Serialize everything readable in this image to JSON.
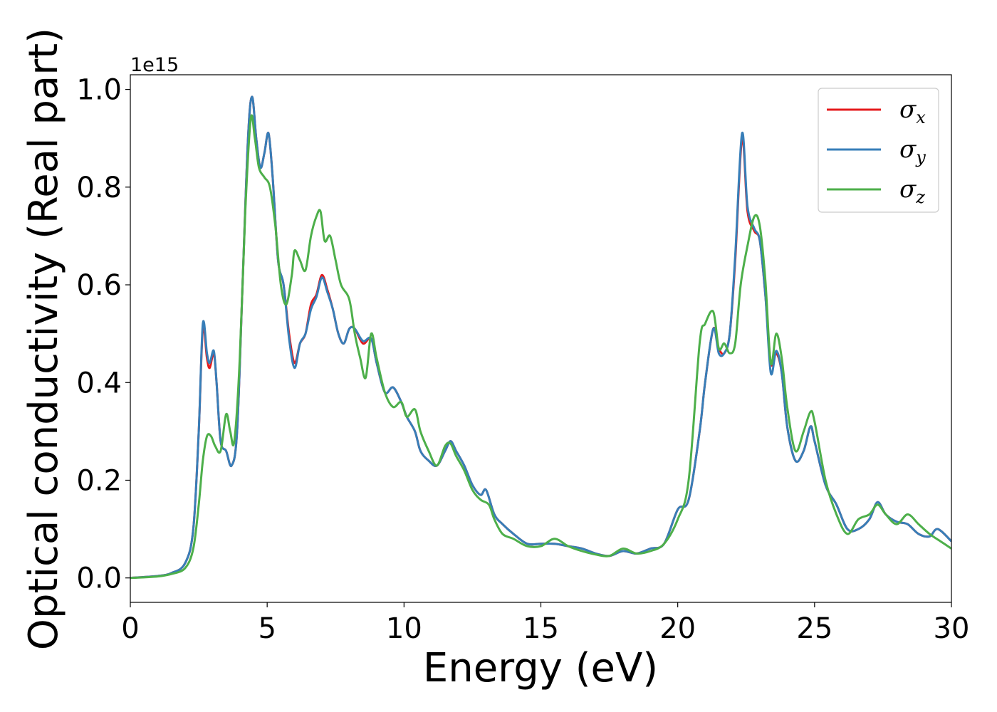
{
  "chart_data": {
    "type": "line",
    "xlabel": "Energy (eV)",
    "ylabel": "Optical conductivity (Real part)",
    "y_offset_label": "1e15",
    "xlim": [
      0,
      30
    ],
    "ylim": [
      -0.05,
      1.03
    ],
    "xticks": [
      0,
      5,
      10,
      15,
      20,
      25,
      30
    ],
    "xtick_labels": [
      "0",
      "5",
      "10",
      "15",
      "20",
      "25",
      "30"
    ],
    "yticks": [
      0.0,
      0.2,
      0.4,
      0.6,
      0.8,
      1.0
    ],
    "ytick_labels": [
      "0.0",
      "0.2",
      "0.4",
      "0.6",
      "0.8",
      "1.0"
    ],
    "grid": false,
    "legend_position": "top-right",
    "series": [
      {
        "name": "σx",
        "symbol": "σ",
        "subscript": "x",
        "color": "#e41a1c",
        "points": [
          [
            0,
            0
          ],
          [
            1,
            0.004
          ],
          [
            1.5,
            0.01
          ],
          [
            2,
            0.03
          ],
          [
            2.3,
            0.1
          ],
          [
            2.5,
            0.3
          ],
          [
            2.65,
            0.51
          ],
          [
            2.8,
            0.45
          ],
          [
            2.9,
            0.43
          ],
          [
            3.05,
            0.46
          ],
          [
            3.15,
            0.4
          ],
          [
            3.3,
            0.28
          ],
          [
            3.5,
            0.26
          ],
          [
            3.7,
            0.23
          ],
          [
            3.9,
            0.3
          ],
          [
            4.1,
            0.6
          ],
          [
            4.3,
            0.9
          ],
          [
            4.45,
            0.985
          ],
          [
            4.6,
            0.9
          ],
          [
            4.75,
            0.84
          ],
          [
            4.9,
            0.87
          ],
          [
            5.05,
            0.91
          ],
          [
            5.2,
            0.82
          ],
          [
            5.4,
            0.65
          ],
          [
            5.6,
            0.6
          ],
          [
            5.8,
            0.5
          ],
          [
            6.0,
            0.44
          ],
          [
            6.2,
            0.48
          ],
          [
            6.4,
            0.5
          ],
          [
            6.6,
            0.56
          ],
          [
            6.8,
            0.58
          ],
          [
            7.0,
            0.62
          ],
          [
            7.2,
            0.59
          ],
          [
            7.4,
            0.55
          ],
          [
            7.6,
            0.5
          ],
          [
            7.8,
            0.48
          ],
          [
            8.0,
            0.51
          ],
          [
            8.2,
            0.51
          ],
          [
            8.5,
            0.48
          ],
          [
            8.8,
            0.49
          ],
          [
            9.0,
            0.44
          ],
          [
            9.3,
            0.38
          ],
          [
            9.6,
            0.39
          ],
          [
            9.9,
            0.36
          ],
          [
            10.1,
            0.33
          ],
          [
            10.4,
            0.3
          ],
          [
            10.6,
            0.26
          ],
          [
            10.9,
            0.24
          ],
          [
            11.2,
            0.23
          ],
          [
            11.5,
            0.26
          ],
          [
            11.7,
            0.28
          ],
          [
            11.9,
            0.26
          ],
          [
            12.2,
            0.23
          ],
          [
            12.5,
            0.19
          ],
          [
            12.8,
            0.17
          ],
          [
            13.0,
            0.18
          ],
          [
            13.3,
            0.13
          ],
          [
            13.6,
            0.11
          ],
          [
            14.0,
            0.09
          ],
          [
            14.5,
            0.07
          ],
          [
            15.0,
            0.07
          ],
          [
            15.5,
            0.07
          ],
          [
            16.0,
            0.065
          ],
          [
            16.5,
            0.06
          ],
          [
            17.0,
            0.05
          ],
          [
            17.5,
            0.045
          ],
          [
            18.0,
            0.055
          ],
          [
            18.5,
            0.05
          ],
          [
            19.0,
            0.06
          ],
          [
            19.5,
            0.07
          ],
          [
            20.0,
            0.14
          ],
          [
            20.4,
            0.16
          ],
          [
            20.8,
            0.3
          ],
          [
            21.0,
            0.4
          ],
          [
            21.3,
            0.51
          ],
          [
            21.5,
            0.47
          ],
          [
            21.7,
            0.46
          ],
          [
            21.9,
            0.5
          ],
          [
            22.1,
            0.65
          ],
          [
            22.35,
            0.9
          ],
          [
            22.55,
            0.75
          ],
          [
            22.8,
            0.71
          ],
          [
            23.0,
            0.69
          ],
          [
            23.2,
            0.58
          ],
          [
            23.4,
            0.44
          ],
          [
            23.6,
            0.46
          ],
          [
            23.8,
            0.42
          ],
          [
            24.0,
            0.31
          ],
          [
            24.3,
            0.24
          ],
          [
            24.6,
            0.26
          ],
          [
            24.85,
            0.31
          ],
          [
            25.0,
            0.28
          ],
          [
            25.4,
            0.19
          ],
          [
            25.8,
            0.15
          ],
          [
            26.2,
            0.1
          ],
          [
            26.6,
            0.1
          ],
          [
            27.0,
            0.12
          ],
          [
            27.3,
            0.155
          ],
          [
            27.6,
            0.13
          ],
          [
            28.0,
            0.115
          ],
          [
            28.4,
            0.11
          ],
          [
            28.8,
            0.09
          ],
          [
            29.2,
            0.085
          ],
          [
            29.5,
            0.1
          ],
          [
            30,
            0.075
          ]
        ]
      },
      {
        "name": "σy",
        "symbol": "σ",
        "subscript": "y",
        "color": "#377eb8",
        "points": [
          [
            0,
            0
          ],
          [
            1,
            0.004
          ],
          [
            1.5,
            0.01
          ],
          [
            2,
            0.03
          ],
          [
            2.3,
            0.1
          ],
          [
            2.5,
            0.3
          ],
          [
            2.65,
            0.52
          ],
          [
            2.8,
            0.46
          ],
          [
            2.9,
            0.44
          ],
          [
            3.05,
            0.465
          ],
          [
            3.15,
            0.4
          ],
          [
            3.3,
            0.28
          ],
          [
            3.5,
            0.26
          ],
          [
            3.7,
            0.23
          ],
          [
            3.9,
            0.3
          ],
          [
            4.1,
            0.6
          ],
          [
            4.3,
            0.9
          ],
          [
            4.45,
            0.985
          ],
          [
            4.6,
            0.9
          ],
          [
            4.75,
            0.84
          ],
          [
            4.9,
            0.87
          ],
          [
            5.05,
            0.91
          ],
          [
            5.2,
            0.82
          ],
          [
            5.4,
            0.65
          ],
          [
            5.6,
            0.6
          ],
          [
            5.8,
            0.49
          ],
          [
            6.0,
            0.43
          ],
          [
            6.2,
            0.48
          ],
          [
            6.4,
            0.5
          ],
          [
            6.6,
            0.55
          ],
          [
            6.8,
            0.575
          ],
          [
            7.0,
            0.615
          ],
          [
            7.2,
            0.585
          ],
          [
            7.4,
            0.55
          ],
          [
            7.6,
            0.5
          ],
          [
            7.8,
            0.48
          ],
          [
            8.0,
            0.51
          ],
          [
            8.2,
            0.51
          ],
          [
            8.5,
            0.485
          ],
          [
            8.8,
            0.49
          ],
          [
            9.0,
            0.44
          ],
          [
            9.3,
            0.38
          ],
          [
            9.6,
            0.39
          ],
          [
            9.9,
            0.36
          ],
          [
            10.1,
            0.33
          ],
          [
            10.4,
            0.3
          ],
          [
            10.6,
            0.26
          ],
          [
            10.9,
            0.24
          ],
          [
            11.2,
            0.23
          ],
          [
            11.5,
            0.26
          ],
          [
            11.7,
            0.28
          ],
          [
            11.9,
            0.26
          ],
          [
            12.2,
            0.23
          ],
          [
            12.5,
            0.19
          ],
          [
            12.8,
            0.17
          ],
          [
            13.0,
            0.18
          ],
          [
            13.3,
            0.13
          ],
          [
            13.6,
            0.11
          ],
          [
            14.0,
            0.09
          ],
          [
            14.5,
            0.07
          ],
          [
            15.0,
            0.07
          ],
          [
            15.5,
            0.07
          ],
          [
            16.0,
            0.065
          ],
          [
            16.5,
            0.06
          ],
          [
            17.0,
            0.05
          ],
          [
            17.5,
            0.045
          ],
          [
            18.0,
            0.055
          ],
          [
            18.5,
            0.05
          ],
          [
            19.0,
            0.06
          ],
          [
            19.5,
            0.07
          ],
          [
            20.0,
            0.14
          ],
          [
            20.4,
            0.16
          ],
          [
            20.8,
            0.3
          ],
          [
            21.0,
            0.4
          ],
          [
            21.3,
            0.51
          ],
          [
            21.5,
            0.46
          ],
          [
            21.7,
            0.46
          ],
          [
            21.9,
            0.5
          ],
          [
            22.1,
            0.66
          ],
          [
            22.35,
            0.91
          ],
          [
            22.55,
            0.76
          ],
          [
            22.8,
            0.715
          ],
          [
            23.0,
            0.69
          ],
          [
            23.2,
            0.58
          ],
          [
            23.4,
            0.42
          ],
          [
            23.6,
            0.465
          ],
          [
            23.8,
            0.42
          ],
          [
            24.0,
            0.31
          ],
          [
            24.3,
            0.24
          ],
          [
            24.6,
            0.26
          ],
          [
            24.85,
            0.31
          ],
          [
            25.0,
            0.28
          ],
          [
            25.4,
            0.19
          ],
          [
            25.8,
            0.15
          ],
          [
            26.2,
            0.1
          ],
          [
            26.6,
            0.1
          ],
          [
            27.0,
            0.12
          ],
          [
            27.3,
            0.155
          ],
          [
            27.6,
            0.13
          ],
          [
            28.0,
            0.115
          ],
          [
            28.4,
            0.11
          ],
          [
            28.8,
            0.09
          ],
          [
            29.2,
            0.085
          ],
          [
            29.5,
            0.1
          ],
          [
            30,
            0.075
          ]
        ]
      },
      {
        "name": "σz",
        "symbol": "σ",
        "subscript": "z",
        "color": "#4daf4a",
        "points": [
          [
            0,
            0
          ],
          [
            1,
            0.003
          ],
          [
            1.5,
            0.008
          ],
          [
            2,
            0.02
          ],
          [
            2.3,
            0.06
          ],
          [
            2.5,
            0.15
          ],
          [
            2.65,
            0.24
          ],
          [
            2.8,
            0.29
          ],
          [
            2.95,
            0.29
          ],
          [
            3.1,
            0.27
          ],
          [
            3.3,
            0.26
          ],
          [
            3.5,
            0.335
          ],
          [
            3.65,
            0.3
          ],
          [
            3.8,
            0.28
          ],
          [
            4.0,
            0.45
          ],
          [
            4.2,
            0.75
          ],
          [
            4.4,
            0.94
          ],
          [
            4.55,
            0.9
          ],
          [
            4.7,
            0.84
          ],
          [
            4.9,
            0.82
          ],
          [
            5.1,
            0.8
          ],
          [
            5.3,
            0.72
          ],
          [
            5.5,
            0.6
          ],
          [
            5.7,
            0.56
          ],
          [
            5.9,
            0.62
          ],
          [
            6.0,
            0.67
          ],
          [
            6.2,
            0.65
          ],
          [
            6.4,
            0.63
          ],
          [
            6.6,
            0.7
          ],
          [
            6.8,
            0.74
          ],
          [
            6.95,
            0.75
          ],
          [
            7.1,
            0.69
          ],
          [
            7.3,
            0.7
          ],
          [
            7.5,
            0.65
          ],
          [
            7.7,
            0.6
          ],
          [
            8.0,
            0.57
          ],
          [
            8.2,
            0.5
          ],
          [
            8.4,
            0.45
          ],
          [
            8.6,
            0.41
          ],
          [
            8.8,
            0.5
          ],
          [
            9.0,
            0.45
          ],
          [
            9.3,
            0.38
          ],
          [
            9.6,
            0.35
          ],
          [
            9.9,
            0.36
          ],
          [
            10.1,
            0.33
          ],
          [
            10.4,
            0.345
          ],
          [
            10.6,
            0.3
          ],
          [
            10.9,
            0.26
          ],
          [
            11.2,
            0.23
          ],
          [
            11.5,
            0.27
          ],
          [
            11.7,
            0.275
          ],
          [
            11.9,
            0.25
          ],
          [
            12.2,
            0.22
          ],
          [
            12.5,
            0.18
          ],
          [
            12.8,
            0.16
          ],
          [
            13.1,
            0.15
          ],
          [
            13.3,
            0.12
          ],
          [
            13.6,
            0.09
          ],
          [
            14.0,
            0.08
          ],
          [
            14.5,
            0.065
          ],
          [
            15.0,
            0.065
          ],
          [
            15.5,
            0.08
          ],
          [
            16.0,
            0.065
          ],
          [
            16.5,
            0.055
          ],
          [
            17.0,
            0.048
          ],
          [
            17.5,
            0.045
          ],
          [
            18.0,
            0.06
          ],
          [
            18.5,
            0.05
          ],
          [
            19.0,
            0.055
          ],
          [
            19.5,
            0.07
          ],
          [
            20.0,
            0.12
          ],
          [
            20.4,
            0.2
          ],
          [
            20.8,
            0.48
          ],
          [
            21.0,
            0.52
          ],
          [
            21.3,
            0.545
          ],
          [
            21.5,
            0.47
          ],
          [
            21.7,
            0.48
          ],
          [
            21.9,
            0.46
          ],
          [
            22.1,
            0.48
          ],
          [
            22.3,
            0.6
          ],
          [
            22.55,
            0.68
          ],
          [
            22.8,
            0.74
          ],
          [
            23.0,
            0.72
          ],
          [
            23.2,
            0.61
          ],
          [
            23.4,
            0.44
          ],
          [
            23.6,
            0.5
          ],
          [
            23.8,
            0.45
          ],
          [
            24.0,
            0.35
          ],
          [
            24.3,
            0.26
          ],
          [
            24.6,
            0.3
          ],
          [
            24.85,
            0.34
          ],
          [
            25.0,
            0.32
          ],
          [
            25.4,
            0.2
          ],
          [
            25.8,
            0.13
          ],
          [
            26.2,
            0.09
          ],
          [
            26.6,
            0.12
          ],
          [
            27.0,
            0.13
          ],
          [
            27.3,
            0.15
          ],
          [
            27.6,
            0.13
          ],
          [
            28.0,
            0.11
          ],
          [
            28.4,
            0.13
          ],
          [
            28.8,
            0.11
          ],
          [
            29.2,
            0.09
          ],
          [
            29.6,
            0.075
          ],
          [
            30,
            0.06
          ]
        ]
      }
    ]
  }
}
